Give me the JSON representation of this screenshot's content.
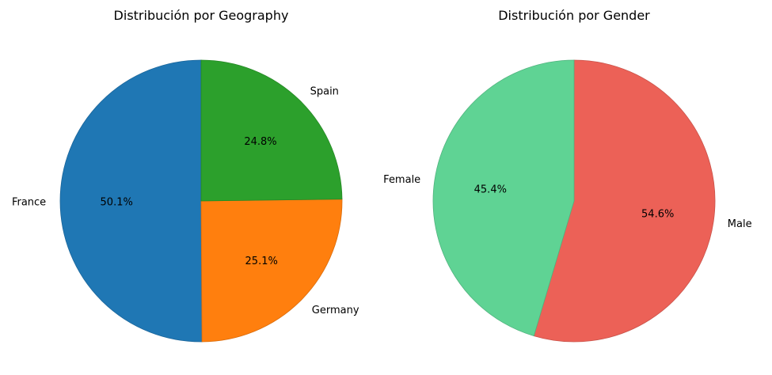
{
  "chart_data": [
    {
      "type": "pie",
      "title": "Distribución por Geography",
      "slices": [
        {
          "label": "France",
          "value": 50.1,
          "display": "50.1%",
          "color": "#1f77b4",
          "edge": "#1a659a"
        },
        {
          "label": "Germany",
          "value": 25.1,
          "display": "25.1%",
          "color": "#ff7f0e",
          "edge": "#d96c0c"
        },
        {
          "label": "Spain",
          "value": 24.8,
          "display": "24.8%",
          "color": "#2ca02c",
          "edge": "#258825"
        }
      ]
    },
    {
      "type": "pie",
      "title": "Distribución por Gender",
      "slices": [
        {
          "label": "Male",
          "value": 54.6,
          "display": "54.6%",
          "color": "#ec6157",
          "edge": "#c9534a"
        },
        {
          "label": "Female",
          "value": 45.4,
          "display": "45.4%",
          "color": "#5fd394",
          "edge": "#51b37e"
        }
      ]
    }
  ]
}
